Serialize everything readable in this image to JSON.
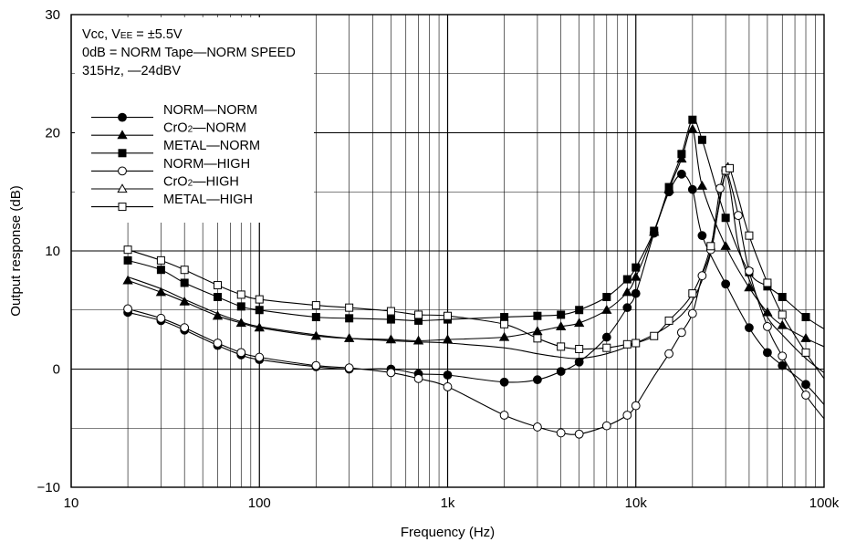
{
  "chart_data": {
    "type": "line",
    "title": "",
    "xlabel": "Frequency (Hz)",
    "ylabel": "Output response (dB)",
    "xscale": "log",
    "xlim": [
      10,
      100000
    ],
    "ylim": [
      -10,
      30
    ],
    "x_tick_labels": [
      {
        "value": 10,
        "label": "10"
      },
      {
        "value": 100,
        "label": "100"
      },
      {
        "value": 1000,
        "label": "1k"
      },
      {
        "value": 10000,
        "label": "10k"
      },
      {
        "value": 100000,
        "label": "100k"
      }
    ],
    "y_tick_labels": [
      {
        "value": -10,
        "label": "−10"
      },
      {
        "value": 0,
        "label": "0"
      },
      {
        "value": 10,
        "label": "10"
      },
      {
        "value": 20,
        "label": "20"
      },
      {
        "value": 30,
        "label": "30"
      }
    ],
    "grid": true,
    "legend_position": "top-left",
    "annotations": [
      {
        "text": "Vcc, V",
        "sub": "EE",
        "tail": " = ±5.5V"
      },
      {
        "text": "0dB = NORM Tape—NORM SPEED"
      },
      {
        "text": "315Hz, —24dBV"
      }
    ],
    "series": [
      {
        "name": "NORM—NORM",
        "marker": "circle-filled",
        "x": [
          20,
          30,
          40,
          60,
          80,
          100,
          200,
          300,
          500,
          700,
          1000,
          2000,
          3000,
          4000,
          5000,
          7000,
          9000,
          10000,
          12500,
          15000,
          17500,
          20000,
          22500,
          30000,
          40000,
          50000,
          60000,
          80000,
          100000
        ],
        "y": [
          4.8,
          4.1,
          3.3,
          2.0,
          1.2,
          0.8,
          0.2,
          0.0,
          0.0,
          -0.4,
          -0.5,
          -1.1,
          -0.9,
          -0.2,
          0.6,
          2.7,
          5.2,
          6.4,
          11.5,
          15.0,
          16.5,
          15.2,
          11.3,
          7.2,
          3.5,
          1.4,
          0.3,
          -1.3,
          -3.0
        ]
      },
      {
        "name": "CrO2—NORM",
        "marker": "triangle-filled",
        "x": [
          20,
          30,
          40,
          60,
          80,
          100,
          200,
          300,
          500,
          700,
          1000,
          2000,
          3000,
          4000,
          5000,
          7000,
          9000,
          10000,
          12500,
          15000,
          17500,
          20000,
          22500,
          30000,
          40000,
          50000,
          60000,
          80000,
          100000
        ],
        "y": [
          7.5,
          6.5,
          5.7,
          4.5,
          3.9,
          3.5,
          2.8,
          2.6,
          2.5,
          2.4,
          2.5,
          2.7,
          3.2,
          3.6,
          3.9,
          5.0,
          6.5,
          7.8,
          11.6,
          15.2,
          17.8,
          20.3,
          15.5,
          10.4,
          6.9,
          4.8,
          3.7,
          2.6,
          1.9
        ]
      },
      {
        "name": "METAL—NORM",
        "marker": "square-filled",
        "x": [
          20,
          30,
          40,
          60,
          80,
          100,
          200,
          300,
          500,
          700,
          1000,
          2000,
          3000,
          4000,
          5000,
          7000,
          9000,
          10000,
          12500,
          15000,
          17500,
          20000,
          22500,
          30000,
          40000,
          50000,
          60000,
          80000,
          100000
        ],
        "y": [
          9.2,
          8.4,
          7.3,
          6.1,
          5.3,
          5.0,
          4.4,
          4.3,
          4.2,
          4.1,
          4.2,
          4.4,
          4.5,
          4.6,
          5.0,
          6.1,
          7.6,
          8.6,
          11.7,
          15.4,
          18.2,
          21.1,
          19.4,
          12.8,
          8.2,
          7.0,
          6.1,
          4.4,
          3.4
        ]
      },
      {
        "name": "NORM—HIGH",
        "marker": "circle-open",
        "x": [
          20,
          30,
          40,
          60,
          80,
          100,
          200,
          300,
          500,
          700,
          1000,
          2000,
          3000,
          4000,
          5000,
          7000,
          9000,
          10000,
          12500,
          15000,
          17500,
          20000,
          22500,
          25000,
          28000,
          30000,
          32500,
          35000,
          40000,
          50000,
          60000,
          80000,
          100000
        ],
        "y": [
          5.1,
          4.3,
          3.5,
          2.2,
          1.4,
          1.0,
          0.3,
          0.1,
          -0.3,
          -0.8,
          -1.5,
          -3.9,
          -4.9,
          -5.4,
          -5.5,
          -4.8,
          -3.9,
          -3.1,
          -0.6,
          1.3,
          3.1,
          4.7,
          7.9,
          10.1,
          15.3,
          16.8,
          15.2,
          13.0,
          8.3,
          3.6,
          1.1,
          -2.2,
          -4.2
        ]
      },
      {
        "name": "CrO2—HIGH",
        "marker": "triangle-open",
        "x": [
          20,
          30,
          40,
          60,
          80,
          100,
          200,
          300,
          500,
          700,
          1000,
          2000,
          3000,
          4000,
          5000,
          7000,
          10000,
          15000,
          20000,
          25000,
          30000,
          35000,
          40000,
          50000,
          60000,
          80000,
          100000
        ],
        "y": [
          7.8,
          6.8,
          5.9,
          4.7,
          4.0,
          3.6,
          2.9,
          2.6,
          2.4,
          2.3,
          2.2,
          1.8,
          1.3,
          1.0,
          0.9,
          1.3,
          2.2,
          3.7,
          5.8,
          9.8,
          16.4,
          10.5,
          7.6,
          4.4,
          2.9,
          0.9,
          -0.3
        ]
      },
      {
        "name": "METAL—HIGH",
        "marker": "square-open",
        "x": [
          20,
          30,
          40,
          60,
          80,
          100,
          200,
          300,
          500,
          700,
          1000,
          2000,
          3000,
          4000,
          5000,
          7000,
          9000,
          10000,
          12500,
          15000,
          20000,
          25000,
          30000,
          31500,
          35000,
          40000,
          50000,
          60000,
          80000,
          100000
        ],
        "y": [
          10.1,
          9.2,
          8.4,
          7.1,
          6.3,
          5.9,
          5.4,
          5.2,
          4.9,
          4.6,
          4.5,
          3.8,
          2.6,
          1.9,
          1.7,
          1.8,
          2.1,
          2.2,
          2.8,
          4.1,
          6.4,
          10.4,
          16.8,
          17.0,
          14.5,
          11.3,
          7.3,
          4.6,
          1.4,
          -0.8
        ]
      }
    ]
  }
}
